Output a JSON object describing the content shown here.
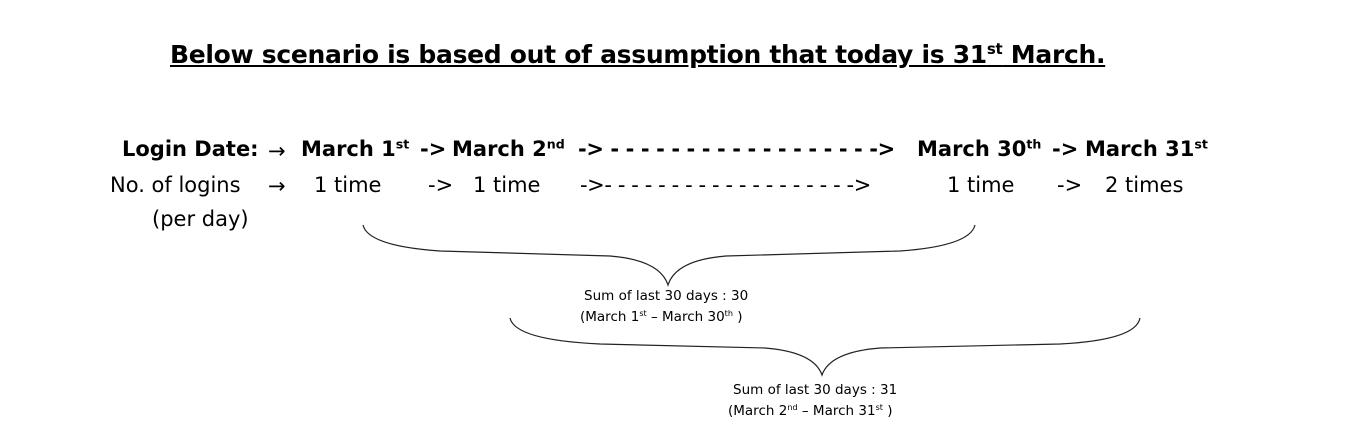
{
  "title": {
    "text": "Below scenario is based out of assumption that today is 31",
    "sup": "st",
    "tail": " March."
  },
  "row_dates": {
    "label": "Login Date:",
    "arrow": "→",
    "d1": {
      "text": "March 1",
      "sup": "st"
    },
    "sep1": "->",
    "d2": {
      "text": "March 2",
      "sup": "nd"
    },
    "sep2": "-> - - - - - - - - - - - - - - - - - ->",
    "d3": {
      "text": "March 30",
      "sup": "th"
    },
    "sep3": "->",
    "d4": {
      "text": "March 31",
      "sup": "st"
    }
  },
  "row_logins": {
    "label": "No. of logins",
    "label2": "(per day)",
    "arrow": "→",
    "v1": "1 time",
    "sep1": "->",
    "v2": "1 time",
    "sep2": "->- - - - - - - - - - - - - - - - - - ->",
    "v3": "1 time",
    "sep3": "->",
    "v4": "2 times"
  },
  "sum1": {
    "line1": "Sum of last 30 days : 30",
    "a": "(March 1",
    "a_sup": "st",
    "b": " – March 30",
    "b_sup": "th",
    "c": " )"
  },
  "sum2": {
    "line1": "Sum of last 30 days : 31",
    "a": "(March 2",
    "a_sup": "nd",
    "b": " – March 31",
    "b_sup": "st",
    "c": " )"
  }
}
